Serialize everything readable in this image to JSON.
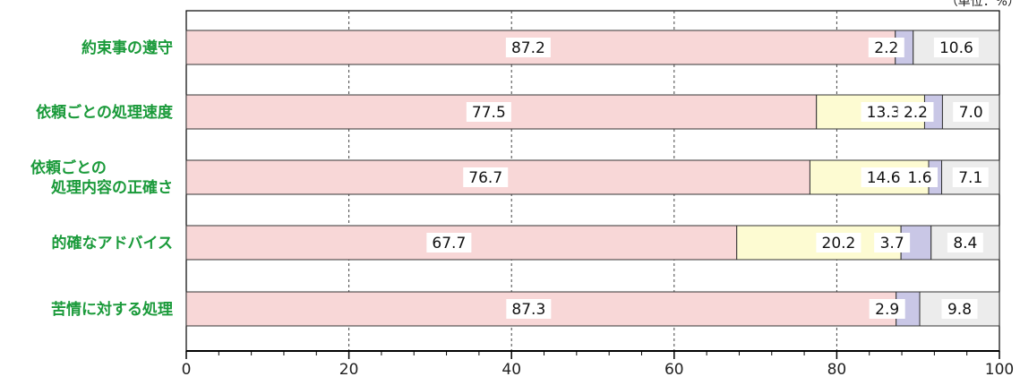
{
  "chart_data": {
    "type": "bar",
    "orientation": "horizontal",
    "stacked": true,
    "unit_note": "（単位：%）",
    "categories": [
      [
        "約束事の遵守"
      ],
      [
        "依頼ごとの処理速度"
      ],
      [
        "依頼ごとの",
        "処理内容の正確さ"
      ],
      [
        "的確なアドバイス"
      ],
      [
        "苦情に対する処理"
      ]
    ],
    "series": [
      {
        "color": "#f8d7d7",
        "values": [
          87.2,
          77.5,
          76.7,
          67.7,
          87.3
        ]
      },
      {
        "color": "#fdfbd2",
        "values": [
          0,
          13.3,
          14.6,
          20.2,
          0
        ]
      },
      {
        "color": "#c9c7e6",
        "values": [
          2.2,
          2.2,
          1.6,
          3.7,
          2.9
        ]
      },
      {
        "color": "#ececec",
        "values": [
          10.6,
          7.0,
          7.1,
          8.4,
          9.8
        ]
      }
    ],
    "value_labels": [
      [
        "87.2",
        "",
        "2.2",
        "10.6"
      ],
      [
        "77.5",
        "13.3",
        "2.2",
        "7.0"
      ],
      [
        "76.7",
        "14.6",
        "1.6",
        "7.1"
      ],
      [
        "67.7",
        "20.2",
        "3.7",
        "8.4"
      ],
      [
        "87.3",
        "",
        "2.9",
        "9.8"
      ]
    ],
    "xlim": [
      0,
      100
    ],
    "x_ticks": [
      "0",
      "20",
      "40",
      "60",
      "80",
      "100"
    ],
    "grid": "vertical dashed"
  }
}
